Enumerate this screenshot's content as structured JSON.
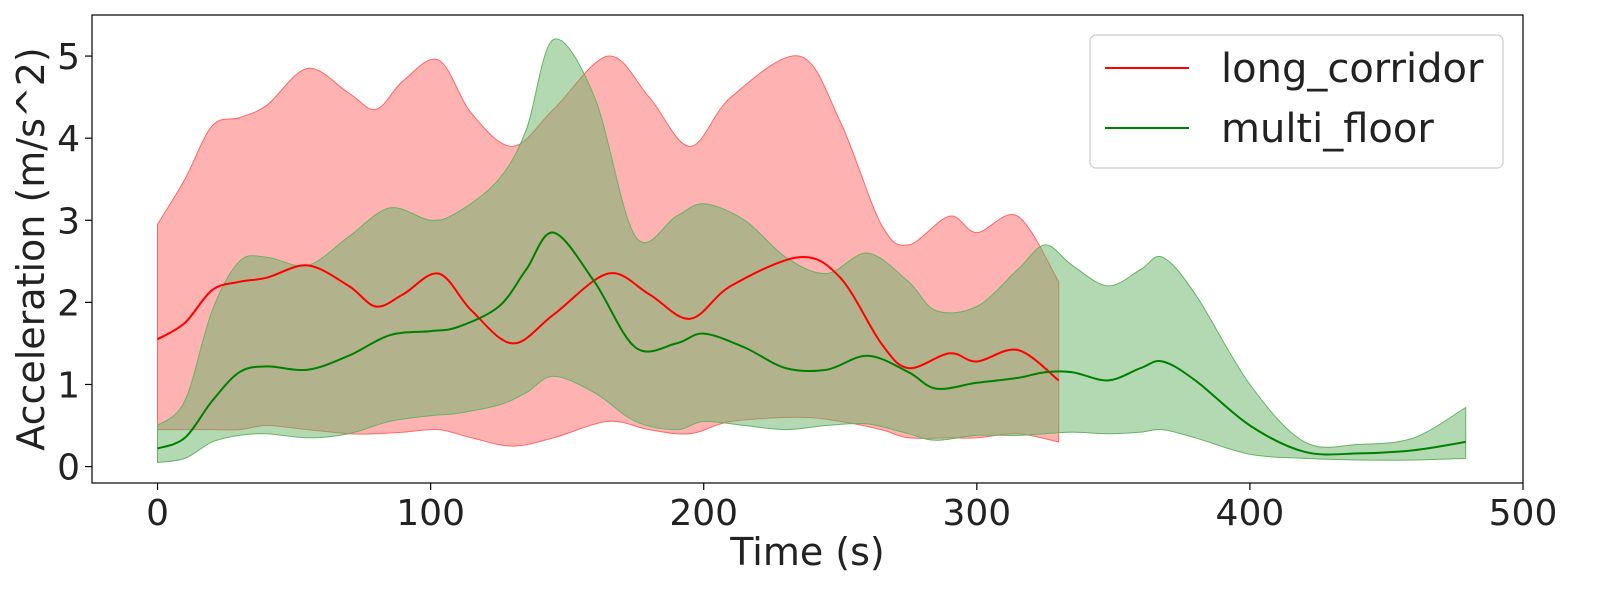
{
  "chart_data": {
    "type": "line",
    "title": "",
    "xlabel": "Time (s)",
    "ylabel": "Acceleration (m/s^2)",
    "xlim": [
      -24,
      500
    ],
    "ylim": [
      -0.2,
      5.5
    ],
    "xticks": [
      0,
      100,
      200,
      300,
      400,
      500
    ],
    "yticks": [
      0,
      1,
      2,
      3,
      4,
      5
    ],
    "grid": false,
    "legend_position": "top-right",
    "series": [
      {
        "name": "long_corridor",
        "color": "#ff0000",
        "band_color": "#ff6666",
        "x": [
          0,
          10,
          20,
          30,
          40,
          55,
          70,
          80,
          90,
          103,
          115,
          130,
          145,
          165,
          180,
          195,
          210,
          235,
          250,
          265,
          275,
          290,
          300,
          315,
          330
        ],
        "mean": [
          1.55,
          1.75,
          2.15,
          2.25,
          2.3,
          2.45,
          2.2,
          1.95,
          2.1,
          2.35,
          1.9,
          1.5,
          1.85,
          2.35,
          2.1,
          1.8,
          2.2,
          2.55,
          2.3,
          1.5,
          1.2,
          1.38,
          1.28,
          1.42,
          1.05
        ],
        "upper": [
          2.95,
          3.5,
          4.15,
          4.25,
          4.4,
          4.85,
          4.55,
          4.35,
          4.7,
          4.95,
          4.3,
          3.9,
          4.35,
          5.0,
          4.5,
          3.9,
          4.5,
          5.0,
          4.2,
          2.95,
          2.7,
          3.05,
          2.85,
          3.05,
          2.25
        ],
        "lower": [
          0.45,
          0.45,
          0.45,
          0.45,
          0.5,
          0.45,
          0.4,
          0.4,
          0.42,
          0.45,
          0.35,
          0.25,
          0.35,
          0.55,
          0.45,
          0.4,
          0.55,
          0.6,
          0.55,
          0.45,
          0.35,
          0.35,
          0.35,
          0.4,
          0.3
        ]
      },
      {
        "name": "multi_floor",
        "color": "#008000",
        "band_color": "#66b366",
        "x": [
          0,
          10,
          20,
          30,
          40,
          55,
          70,
          85,
          100,
          110,
          125,
          135,
          145,
          160,
          175,
          190,
          200,
          215,
          230,
          245,
          260,
          275,
          285,
          300,
          315,
          325,
          335,
          348,
          360,
          368,
          380,
          400,
          420,
          440,
          460,
          479
        ],
        "mean": [
          0.22,
          0.35,
          0.8,
          1.15,
          1.22,
          1.18,
          1.35,
          1.6,
          1.65,
          1.7,
          1.95,
          2.4,
          2.85,
          2.25,
          1.45,
          1.5,
          1.62,
          1.45,
          1.2,
          1.18,
          1.35,
          1.15,
          0.95,
          1.02,
          1.08,
          1.15,
          1.15,
          1.05,
          1.2,
          1.28,
          1.05,
          0.5,
          0.18,
          0.16,
          0.2,
          0.3
        ],
        "upper": [
          0.5,
          0.8,
          1.9,
          2.5,
          2.55,
          2.45,
          2.8,
          3.15,
          3.0,
          3.1,
          3.5,
          4.1,
          5.2,
          4.5,
          2.8,
          3.05,
          3.2,
          3.0,
          2.55,
          2.35,
          2.6,
          2.25,
          1.9,
          1.95,
          2.4,
          2.7,
          2.45,
          2.2,
          2.4,
          2.55,
          2.1,
          1.0,
          0.3,
          0.27,
          0.35,
          0.72
        ],
        "lower": [
          0.05,
          0.1,
          0.3,
          0.38,
          0.4,
          0.35,
          0.4,
          0.55,
          0.62,
          0.65,
          0.75,
          0.9,
          1.1,
          0.9,
          0.55,
          0.45,
          0.55,
          0.5,
          0.45,
          0.5,
          0.52,
          0.4,
          0.32,
          0.38,
          0.38,
          0.4,
          0.42,
          0.4,
          0.42,
          0.45,
          0.35,
          0.15,
          0.1,
          0.08,
          0.08,
          0.1
        ]
      }
    ]
  }
}
